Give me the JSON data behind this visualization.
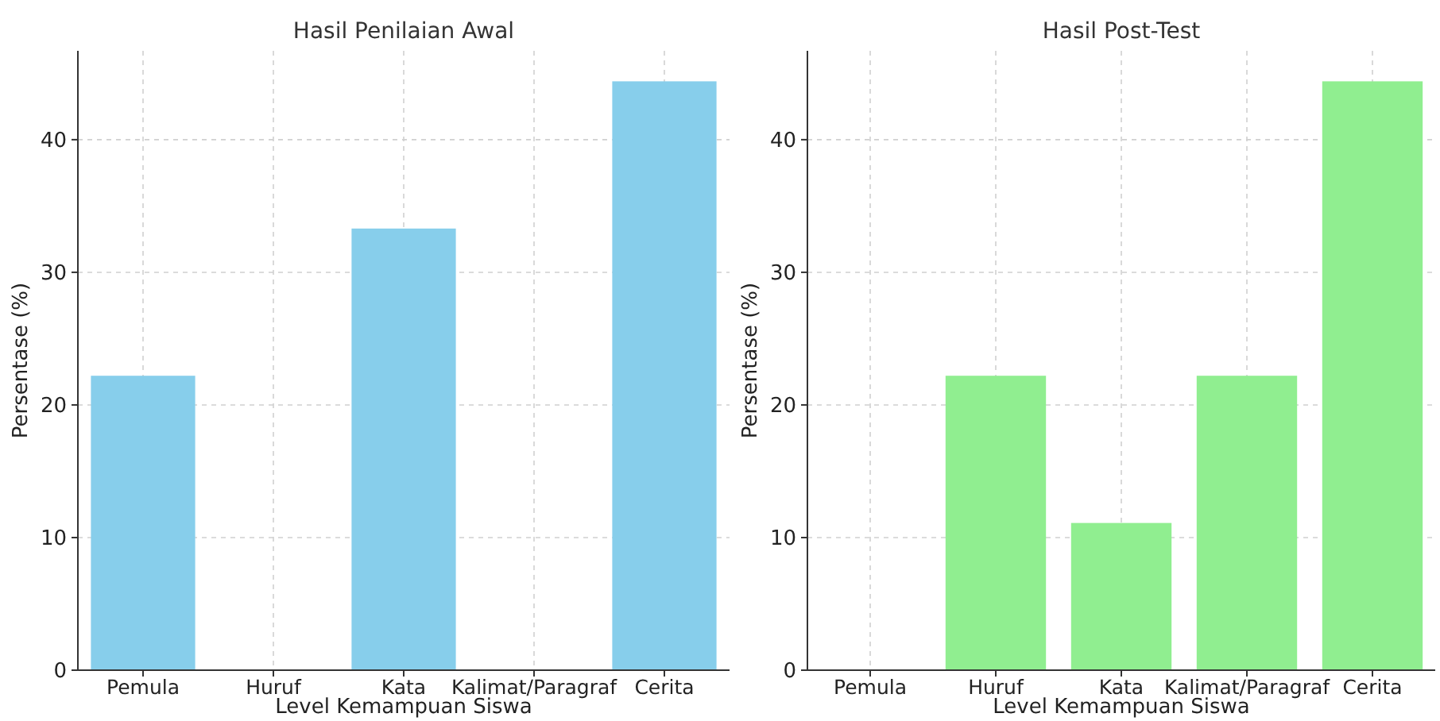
{
  "chart_data": [
    {
      "type": "bar",
      "title": "Hasil Penilaian Awal",
      "xlabel": "Level Kemampuan Siswa",
      "ylabel": "Persentase (%)",
      "categories": [
        "Pemula",
        "Huruf",
        "Kata",
        "Kalimat/Paragraf",
        "Cerita"
      ],
      "values": [
        22.2,
        0,
        33.3,
        0,
        44.4
      ],
      "color": "#87ceeb",
      "ylim": [
        0,
        46.7
      ],
      "yticks": [
        0,
        10,
        20,
        30,
        40
      ],
      "grid": true
    },
    {
      "type": "bar",
      "title": "Hasil Post-Test",
      "xlabel": "Level Kemampuan Siswa",
      "ylabel": "Persentase (%)",
      "categories": [
        "Pemula",
        "Huruf",
        "Kata",
        "Kalimat/Paragraf",
        "Cerita"
      ],
      "values": [
        0,
        22.2,
        11.1,
        22.2,
        44.4
      ],
      "color": "#90ee90",
      "ylim": [
        0,
        46.7
      ],
      "yticks": [
        0,
        10,
        20,
        30,
        40
      ],
      "grid": true
    }
  ]
}
